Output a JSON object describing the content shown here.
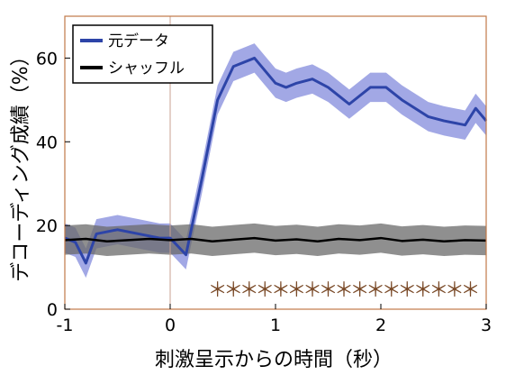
{
  "chart_data": {
    "type": "line",
    "title": "",
    "xlabel": "刺激呈示からの時間（秒）",
    "ylabel": "デコーディング成績（%）",
    "xlim": [
      -1,
      3
    ],
    "ylim": [
      0,
      70
    ],
    "x_ticks": [
      -1,
      0,
      1,
      2,
      3
    ],
    "y_ticks": [
      0,
      20,
      40,
      60
    ],
    "x_tick_labels": [
      "-1",
      "0",
      "1",
      "2",
      "3"
    ],
    "y_tick_labels": [
      "0",
      "20",
      "40",
      "60"
    ],
    "vertical_reference_x": 0,
    "legend_position": "top-left",
    "grid": false,
    "series": [
      {
        "name": "元データ",
        "color": "#2d44a8",
        "band_color": "#5560d0",
        "x": [
          -1.0,
          -0.9,
          -0.8,
          -0.7,
          -0.5,
          -0.3,
          -0.1,
          0.0,
          0.15,
          0.3,
          0.45,
          0.6,
          0.8,
          1.0,
          1.1,
          1.2,
          1.35,
          1.5,
          1.7,
          1.9,
          2.05,
          2.2,
          2.45,
          2.6,
          2.8,
          2.9,
          3.0
        ],
        "values": [
          17,
          16,
          11,
          18,
          19,
          18,
          17,
          17,
          13,
          31,
          50,
          58,
          60,
          54,
          53,
          54,
          55,
          53,
          49,
          53,
          53,
          50,
          46,
          45,
          44,
          48,
          45
        ],
        "band": 3.5
      },
      {
        "name": "シャッフル",
        "color": "#000000",
        "band_color": "#6a6a6a",
        "x": [
          -1.0,
          -0.8,
          -0.6,
          -0.4,
          -0.2,
          0.0,
          0.2,
          0.4,
          0.6,
          0.8,
          1.0,
          1.2,
          1.4,
          1.6,
          1.8,
          2.0,
          2.2,
          2.4,
          2.6,
          2.8,
          3.0
        ],
        "values": [
          16.5,
          16.8,
          16.2,
          16.5,
          16.8,
          16.5,
          16.8,
          16.2,
          16.6,
          17.0,
          16.4,
          16.7,
          16.2,
          16.8,
          16.5,
          17.0,
          16.3,
          16.6,
          16.2,
          16.5,
          16.4
        ],
        "band": 3.5
      }
    ],
    "significance_markers": {
      "symbol": "＊",
      "color": "#7a4a28",
      "y": 5,
      "x": [
        0.45,
        0.6,
        0.75,
        0.9,
        1.05,
        1.2,
        1.35,
        1.5,
        1.65,
        1.8,
        1.95,
        2.1,
        2.25,
        2.4,
        2.55,
        2.7,
        2.85
      ]
    }
  }
}
